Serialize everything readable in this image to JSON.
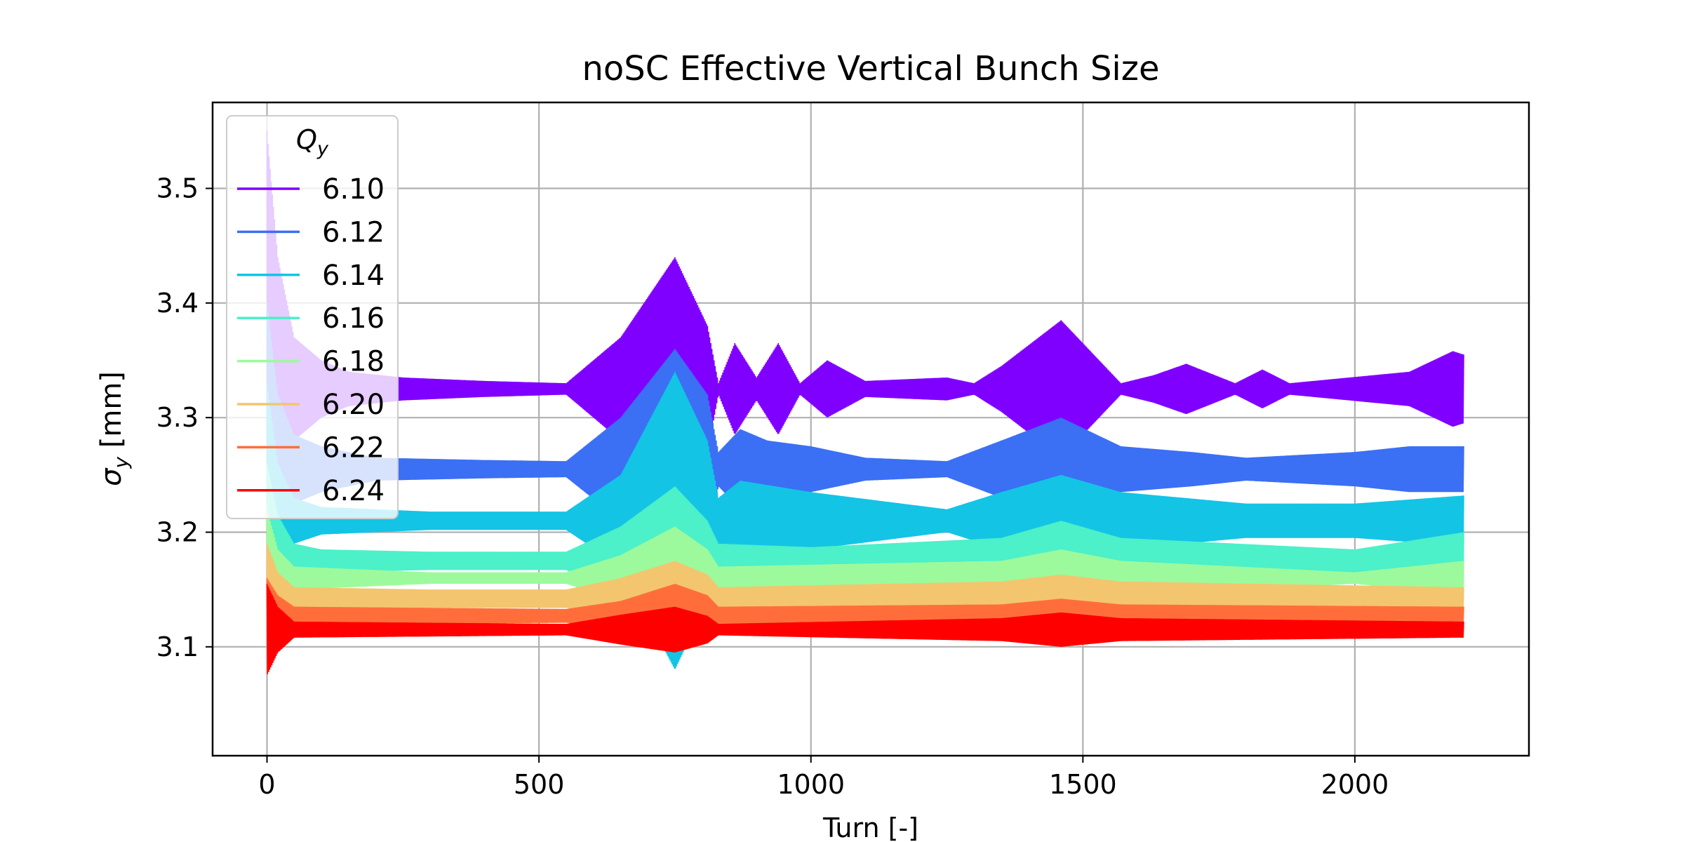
{
  "chart_data": {
    "type": "line",
    "title": "noSC Effective Vertical Bunch Size",
    "xlabel": "Turn [-]",
    "ylabel_main": "σ",
    "ylabel_sub": "y",
    "ylabel_unit": "[mm]",
    "xlim": [
      -100,
      2320
    ],
    "ylim": [
      3.005,
      3.575
    ],
    "xticks": [
      0,
      500,
      1000,
      1500,
      2000
    ],
    "xtick_labels": [
      "0",
      "500",
      "1000",
      "1500",
      "2000"
    ],
    "yticks": [
      3.1,
      3.2,
      3.3,
      3.4,
      3.5
    ],
    "ytick_labels": [
      "3.1",
      "3.2",
      "3.3",
      "3.4",
      "3.5"
    ],
    "grid": true,
    "legend": {
      "title_main": "Q",
      "title_sub": "y",
      "placement": "upper-left"
    },
    "series": [
      {
        "name": "6.10",
        "color": "#8000ff",
        "mean": 3.325,
        "envelope": [
          [
            0,
            3.55
          ],
          [
            20,
            3.44
          ],
          [
            50,
            3.37
          ],
          [
            100,
            3.35
          ],
          [
            150,
            3.34
          ],
          [
            250,
            3.335
          ],
          [
            400,
            3.332
          ],
          [
            550,
            3.33
          ],
          [
            650,
            3.37
          ],
          [
            750,
            3.44
          ],
          [
            810,
            3.38
          ],
          [
            830,
            3.33
          ],
          [
            860,
            3.365
          ],
          [
            900,
            3.335
          ],
          [
            940,
            3.365
          ],
          [
            980,
            3.33
          ],
          [
            1030,
            3.35
          ],
          [
            1100,
            3.332
          ],
          [
            1250,
            3.335
          ],
          [
            1300,
            3.33
          ],
          [
            1350,
            3.345
          ],
          [
            1460,
            3.385
          ],
          [
            1570,
            3.33
          ],
          [
            1630,
            3.337
          ],
          [
            1690,
            3.347
          ],
          [
            1780,
            3.33
          ],
          [
            1830,
            3.342
          ],
          [
            1880,
            3.33
          ],
          [
            2100,
            3.34
          ],
          [
            2180,
            3.358
          ],
          [
            2200,
            3.355
          ]
        ]
      },
      {
        "name": "6.12",
        "color": "#3b6ff4",
        "mean": 3.255,
        "envelope": [
          [
            0,
            3.4
          ],
          [
            20,
            3.32
          ],
          [
            50,
            3.285
          ],
          [
            100,
            3.275
          ],
          [
            200,
            3.265
          ],
          [
            400,
            3.263
          ],
          [
            550,
            3.262
          ],
          [
            650,
            3.3
          ],
          [
            750,
            3.36
          ],
          [
            810,
            3.32
          ],
          [
            830,
            3.27
          ],
          [
            870,
            3.29
          ],
          [
            920,
            3.28
          ],
          [
            1000,
            3.275
          ],
          [
            1100,
            3.265
          ],
          [
            1250,
            3.262
          ],
          [
            1350,
            3.28
          ],
          [
            1460,
            3.3
          ],
          [
            1570,
            3.275
          ],
          [
            1700,
            3.27
          ],
          [
            1800,
            3.265
          ],
          [
            2000,
            3.27
          ],
          [
            2100,
            3.275
          ],
          [
            2200,
            3.275
          ]
        ]
      },
      {
        "name": "6.14",
        "color": "#13c4e5",
        "mean": 3.21,
        "envelope": [
          [
            0,
            3.33
          ],
          [
            20,
            3.26
          ],
          [
            50,
            3.23
          ],
          [
            100,
            3.222
          ],
          [
            300,
            3.218
          ],
          [
            550,
            3.218
          ],
          [
            650,
            3.25
          ],
          [
            750,
            3.34
          ],
          [
            810,
            3.28
          ],
          [
            830,
            3.23
          ],
          [
            870,
            3.245
          ],
          [
            1000,
            3.235
          ],
          [
            1250,
            3.22
          ],
          [
            1350,
            3.235
          ],
          [
            1460,
            3.25
          ],
          [
            1570,
            3.235
          ],
          [
            1800,
            3.225
          ],
          [
            2000,
            3.225
          ],
          [
            2200,
            3.232
          ]
        ]
      },
      {
        "name": "6.16",
        "color": "#4cf0c9",
        "mean": 3.175,
        "envelope": [
          [
            0,
            3.26
          ],
          [
            20,
            3.215
          ],
          [
            50,
            3.19
          ],
          [
            100,
            3.185
          ],
          [
            300,
            3.183
          ],
          [
            550,
            3.183
          ],
          [
            650,
            3.205
          ],
          [
            750,
            3.24
          ],
          [
            810,
            3.21
          ],
          [
            830,
            3.19
          ],
          [
            1000,
            3.187
          ],
          [
            1350,
            3.195
          ],
          [
            1460,
            3.21
          ],
          [
            1570,
            3.195
          ],
          [
            2000,
            3.185
          ],
          [
            2200,
            3.2
          ]
        ]
      },
      {
        "name": "6.18",
        "color": "#9cfa9c",
        "mean": 3.16,
        "envelope": [
          [
            0,
            3.22
          ],
          [
            20,
            3.185
          ],
          [
            50,
            3.17
          ],
          [
            300,
            3.165
          ],
          [
            550,
            3.165
          ],
          [
            650,
            3.18
          ],
          [
            750,
            3.205
          ],
          [
            810,
            3.185
          ],
          [
            830,
            3.17
          ],
          [
            1350,
            3.175
          ],
          [
            1460,
            3.185
          ],
          [
            1570,
            3.175
          ],
          [
            2000,
            3.165
          ],
          [
            2200,
            3.175
          ]
        ]
      },
      {
        "name": "6.20",
        "color": "#f3c56f",
        "mean": 3.142,
        "envelope": [
          [
            0,
            3.19
          ],
          [
            20,
            3.165
          ],
          [
            50,
            3.152
          ],
          [
            300,
            3.15
          ],
          [
            550,
            3.15
          ],
          [
            650,
            3.16
          ],
          [
            750,
            3.175
          ],
          [
            810,
            3.163
          ],
          [
            830,
            3.152
          ],
          [
            1350,
            3.157
          ],
          [
            1460,
            3.163
          ],
          [
            1570,
            3.157
          ],
          [
            2200,
            3.152
          ]
        ]
      },
      {
        "name": "6.22",
        "color": "#ff6e3a",
        "mean": 3.127,
        "envelope": [
          [
            0,
            3.16
          ],
          [
            20,
            3.145
          ],
          [
            50,
            3.135
          ],
          [
            550,
            3.133
          ],
          [
            650,
            3.14
          ],
          [
            750,
            3.155
          ],
          [
            810,
            3.145
          ],
          [
            830,
            3.135
          ],
          [
            1350,
            3.137
          ],
          [
            1460,
            3.142
          ],
          [
            1570,
            3.137
          ],
          [
            2200,
            3.135
          ]
        ]
      },
      {
        "name": "6.24",
        "color": "#ff0000",
        "mean": 3.115,
        "envelope": [
          [
            0,
            3.155
          ],
          [
            20,
            3.135
          ],
          [
            50,
            3.122
          ],
          [
            550,
            3.12
          ],
          [
            650,
            3.128
          ],
          [
            750,
            3.135
          ],
          [
            810,
            3.127
          ],
          [
            830,
            3.12
          ],
          [
            1350,
            3.125
          ],
          [
            1460,
            3.13
          ],
          [
            1570,
            3.125
          ],
          [
            2200,
            3.122
          ]
        ]
      }
    ]
  }
}
